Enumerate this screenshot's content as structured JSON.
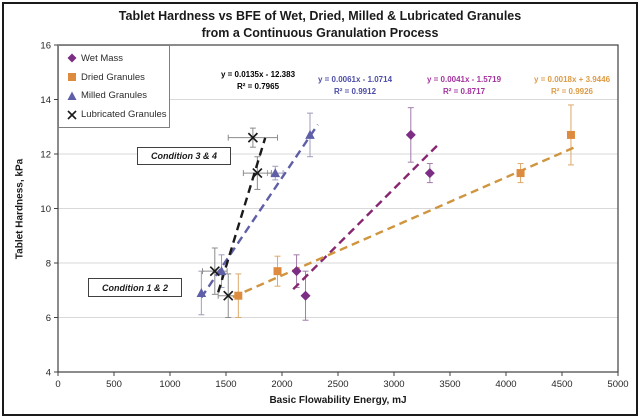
{
  "figure": {
    "title_line1": "Tablet Hardness vs BFE of Wet, Dried, Milled & Lubricated Granules",
    "title_line2": "from a Continuous Granulation Process"
  },
  "chart_data": {
    "type": "scatter",
    "title": "Tablet Hardness vs BFE of Wet, Dried, Milled & Lubricated Granules from a Continuous Granulation Process",
    "xlabel": "Basic Flowability Energy, mJ",
    "ylabel": "Tablet Hardness, kPa",
    "xlim": [
      0,
      5000
    ],
    "ylim": [
      4,
      16
    ],
    "x_ticks": [
      0,
      500,
      1000,
      1500,
      2000,
      2500,
      3000,
      3500,
      4000,
      4500,
      5000
    ],
    "y_ticks": [
      4,
      6,
      8,
      10,
      12,
      14,
      16
    ],
    "grid": "horizontal-only",
    "gridline_color": "#d9d9d9",
    "axis_color": "#404040",
    "legend_position": "top-left-inside",
    "series": [
      {
        "name": "Wet Mass",
        "marker": "diamond",
        "color": "#7b2e83",
        "trend_color": "#87256f",
        "eq_color": "#a433a0",
        "err_color": "#a07ca8",
        "points": [
          {
            "x": 2130,
            "y": 7.7,
            "yerr": 0.6
          },
          {
            "x": 2210,
            "y": 6.8,
            "yerr": 0.9
          },
          {
            "x": 3150,
            "y": 12.7,
            "yerr": 1.0
          },
          {
            "x": 3320,
            "y": 11.3,
            "yerr": 0.35
          }
        ],
        "trendline": {
          "slope": 0.0041,
          "intercept": -1.5719,
          "x_range": [
            2100,
            3400
          ],
          "equation": "y = 0.0041x - 1.5719",
          "r2": "R² = 0.8717"
        }
      },
      {
        "name": "Dried Granules",
        "marker": "square",
        "color": "#dd8c3f",
        "trend_color": "#d0953f",
        "eq_color": "#dd9b45",
        "err_color": "#dca96a",
        "points": [
          {
            "x": 1610,
            "y": 6.8,
            "yerr": 0.8
          },
          {
            "x": 1960,
            "y": 7.7,
            "yerr": 0.55
          },
          {
            "x": 4130,
            "y": 11.3,
            "yerr": 0.35
          },
          {
            "x": 4580,
            "y": 12.7,
            "yerr": 1.1
          }
        ],
        "trendline": {
          "slope": 0.0018,
          "intercept": 3.9446,
          "x_range": [
            1560,
            4640
          ],
          "equation": "y = 0.0018x + 3.9446",
          "r2": "R² = 0.9926"
        }
      },
      {
        "name": "Milled Granules",
        "marker": "triangle",
        "color": "#5f5fa7",
        "trend_color": "#5f5fa7",
        "eq_color": "#4d4da8",
        "err_color": "#9e9ebb",
        "points": [
          {
            "x": 1280,
            "y": 6.9,
            "yerr": 0.8
          },
          {
            "x": 1460,
            "y": 7.7,
            "yerr": 0.6
          },
          {
            "x": 1940,
            "y": 11.3,
            "yerr": 0.25,
            "xerr": 70
          },
          {
            "x": 2250,
            "y": 12.7,
            "yerr": 0.8
          }
        ],
        "trendline": {
          "slope": 0.0061,
          "intercept": -1.0714,
          "x_range": [
            1280,
            2320
          ],
          "equation": "y = 0.0061x - 1.0714",
          "r2": "R² = 0.9912"
        }
      },
      {
        "name": "Lubricated Granules",
        "marker": "x",
        "color": "#1a1a1a",
        "trend_color": "#1a1a1a",
        "eq_color": "#000000",
        "err_color": "#8c8c8c",
        "points": [
          {
            "x": 1400,
            "y": 7.7,
            "yerr": 0.85,
            "xerr": 110
          },
          {
            "x": 1520,
            "y": 6.8,
            "yerr": 0.8,
            "xerr": 90
          },
          {
            "x": 1740,
            "y": 12.6,
            "yerr": 0.35,
            "xerr": 220
          },
          {
            "x": 1780,
            "y": 11.3,
            "yerr": 0.6,
            "xerr": 125
          }
        ],
        "trendline": {
          "slope": 0.0135,
          "intercept": -12.383,
          "x_range": [
            1430,
            1850
          ],
          "equation": "y = 0.0135x - 12.383",
          "r2": "R² = 0.7965"
        }
      }
    ],
    "annotations": [
      {
        "label": "Condition 3 & 4"
      },
      {
        "label": "Condition 1 & 2"
      }
    ]
  }
}
